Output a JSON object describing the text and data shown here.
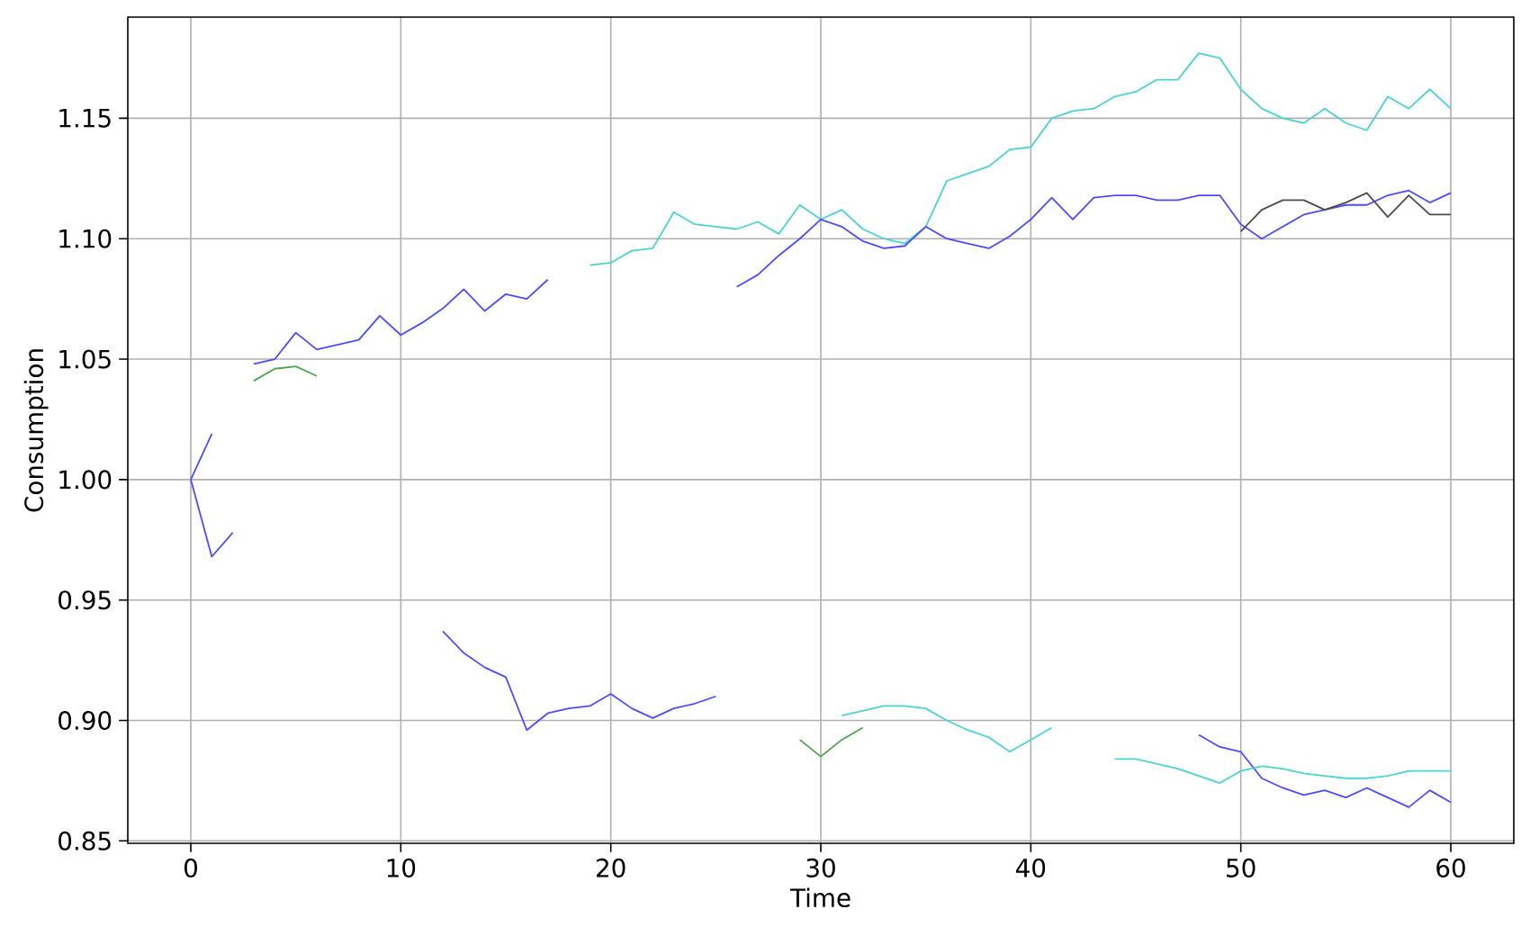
{
  "chart_data": {
    "type": "line",
    "xlabel": "Time",
    "ylabel": "Consumption",
    "xlim": [
      -3,
      63
    ],
    "ylim": [
      0.849,
      1.192
    ],
    "xticks": [
      0,
      10,
      20,
      30,
      40,
      50,
      60
    ],
    "yticks": [
      0.85,
      {
        "value": 0.9,
        "label": "0.90"
      },
      0.95,
      {
        "value": 1.0,
        "label": "1.00"
      },
      1.05,
      {
        "value": 1.1,
        "label": "1.10"
      },
      1.15
    ],
    "grid": true,
    "series": [
      {
        "color": "#4cd2d2",
        "x": [
          19,
          20,
          21,
          22,
          23,
          24,
          25,
          26,
          27,
          28,
          29,
          30,
          31,
          32,
          33,
          34,
          35,
          36,
          37,
          38,
          39,
          40,
          41,
          42,
          43,
          44,
          45,
          46,
          47,
          48,
          49,
          50,
          51,
          52,
          53,
          54,
          55,
          56,
          57,
          58,
          59,
          60
        ],
        "values": [
          1.089,
          1.09,
          1.095,
          1.096,
          1.111,
          1.106,
          1.105,
          1.104,
          1.107,
          1.102,
          1.114,
          1.108,
          1.112,
          1.104,
          1.1,
          1.098,
          1.105,
          1.124,
          1.127,
          1.13,
          1.137,
          1.138,
          1.15,
          1.153,
          1.154,
          1.159,
          1.161,
          1.166,
          1.166,
          1.177,
          1.175,
          1.162,
          1.154,
          1.15,
          1.148,
          1.154,
          1.148,
          1.145,
          1.159,
          1.154,
          1.162,
          1.154
        ]
      },
      {
        "color": "#4c4cff",
        "x": [
          3,
          4,
          5,
          6,
          7,
          8,
          9,
          10,
          11,
          12,
          13,
          14,
          15,
          16,
          17
        ],
        "values": [
          1.048,
          1.05,
          1.061,
          1.054,
          1.056,
          1.058,
          1.068,
          1.06,
          1.065,
          1.071,
          1.079,
          1.07,
          1.077,
          1.075,
          1.083
        ]
      },
      {
        "color": "#4c4cff",
        "x": [
          26,
          27,
          28,
          29,
          30,
          31,
          32,
          33,
          34,
          35,
          36,
          37,
          38,
          39,
          40,
          41,
          42,
          43,
          44,
          45,
          46,
          47,
          48,
          49,
          50,
          51,
          52,
          53,
          54,
          55,
          56,
          57,
          58,
          59,
          60
        ],
        "values": [
          1.08,
          1.085,
          1.093,
          1.1,
          1.108,
          1.105,
          1.099,
          1.096,
          1.097,
          1.105,
          1.1,
          1.098,
          1.096,
          1.101,
          1.108,
          1.117,
          1.108,
          1.117,
          1.118,
          1.118,
          1.116,
          1.116,
          1.118,
          1.118,
          1.106,
          1.1,
          1.105,
          1.11,
          1.112,
          1.114,
          1.114,
          1.118,
          1.12,
          1.115,
          1.119
        ]
      },
      {
        "color": "#4c4c4c",
        "x": [
          50,
          51,
          52,
          53,
          54,
          55,
          56,
          57,
          58,
          59,
          60
        ],
        "values": [
          1.103,
          1.112,
          1.116,
          1.116,
          1.112,
          1.115,
          1.119,
          1.109,
          1.118,
          1.11,
          1.11
        ]
      },
      {
        "color": "#4c4cff",
        "x": [
          48,
          49,
          50,
          51,
          52,
          53,
          54,
          55,
          56,
          57,
          58,
          59,
          60
        ],
        "values": [
          0.894,
          0.889,
          0.887,
          0.876,
          0.872,
          0.869,
          0.871,
          0.868,
          0.872,
          0.868,
          0.864,
          0.871,
          0.866
        ]
      },
      {
        "color": "#4cd2d2",
        "x": [
          31,
          32,
          33,
          34,
          35,
          36,
          37,
          38,
          39,
          40,
          41
        ],
        "values": [
          0.902,
          0.904,
          0.906,
          0.906,
          0.905,
          0.9,
          0.896,
          0.893,
          0.887,
          0.892,
          0.897
        ]
      },
      {
        "color": "#4cd2d2",
        "x": [
          44,
          45,
          46,
          47,
          48,
          49,
          50,
          51,
          52,
          53,
          54,
          55,
          56,
          57,
          58,
          59,
          60
        ],
        "values": [
          0.884,
          0.884,
          0.882,
          0.88,
          0.877,
          0.874,
          0.879,
          0.881,
          0.88,
          0.878,
          0.877,
          0.876,
          0.876,
          0.877,
          0.879,
          0.879,
          0.879
        ]
      },
      {
        "color": "#4c4cff",
        "x": [
          12,
          13,
          14,
          15,
          16,
          17,
          18,
          19,
          20,
          21,
          22,
          23,
          24,
          25
        ],
        "values": [
          0.937,
          0.928,
          0.922,
          0.918,
          0.896,
          0.903,
          0.905,
          0.906,
          0.911,
          0.905,
          0.901,
          0.905,
          0.907,
          0.91
        ]
      },
      {
        "color": "#4ca64c",
        "x": [
          29,
          30,
          31,
          32
        ],
        "values": [
          0.892,
          0.885,
          0.892,
          0.897
        ]
      },
      {
        "color": "#4ca64c",
        "x": [
          3,
          4,
          5,
          6
        ],
        "values": [
          1.041,
          1.046,
          1.047,
          1.043
        ]
      },
      {
        "color": "#4c4cff",
        "x": [
          0,
          1,
          2
        ],
        "values": [
          1.0,
          0.968,
          0.978
        ]
      },
      {
        "color": "#4c4cff",
        "x": [
          0,
          1
        ],
        "values": [
          1.0,
          1.019
        ]
      }
    ]
  }
}
